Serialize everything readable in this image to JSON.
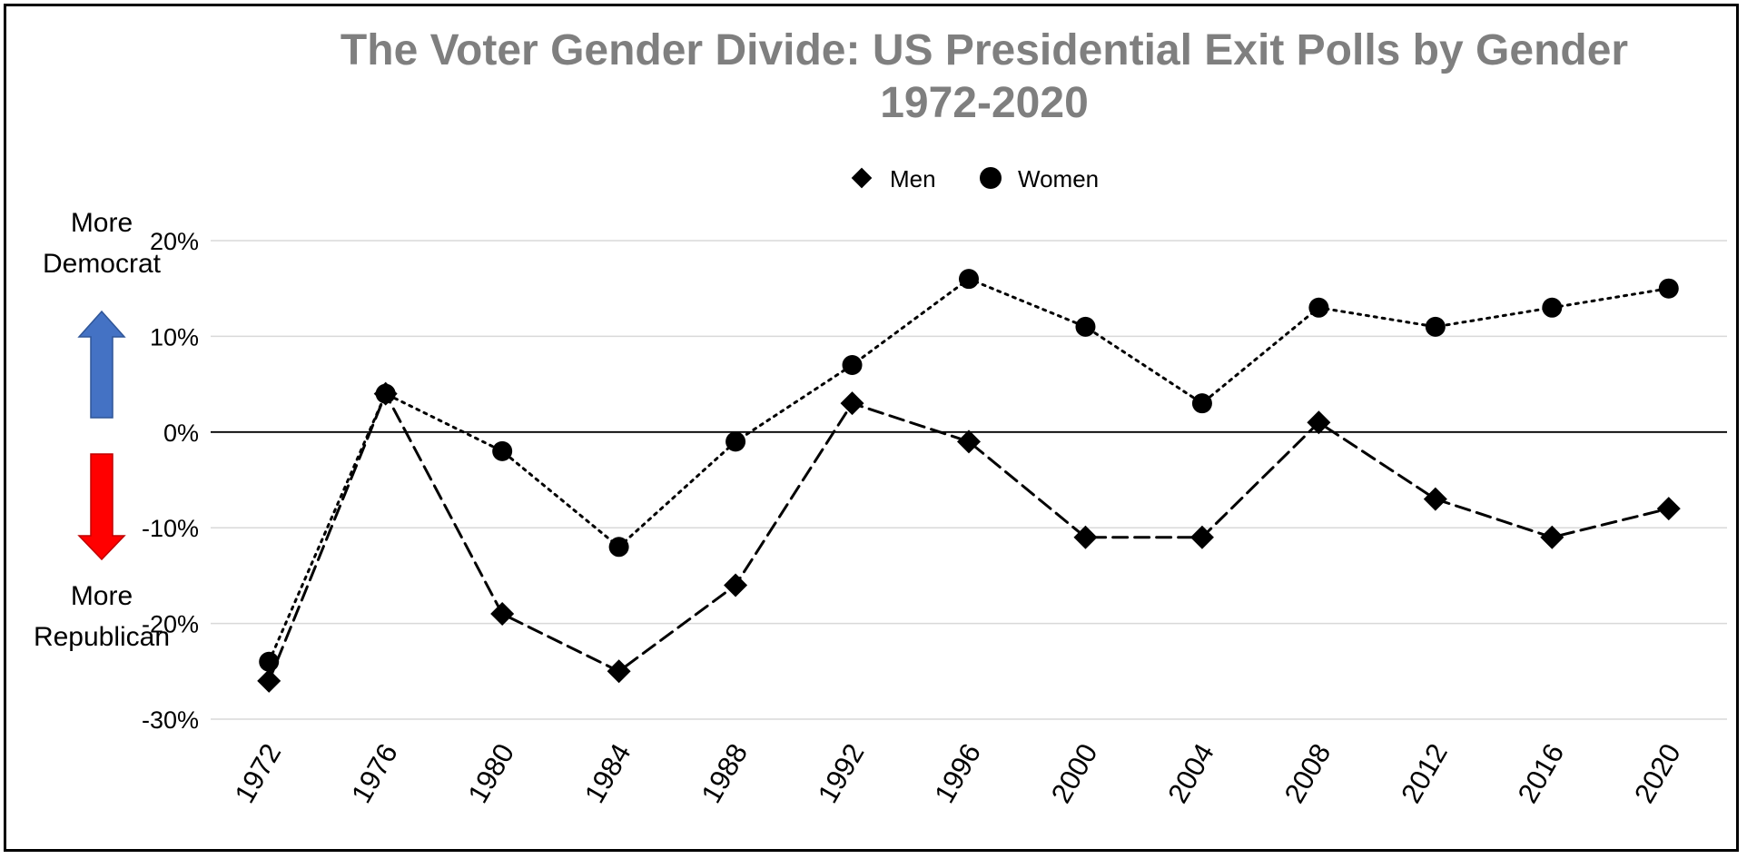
{
  "chart_data": {
    "type": "line",
    "title": "The Voter Gender Divide: US Presidential Exit Polls by Gender",
    "subtitle": "1972-2020",
    "xlabel": "",
    "ylabel": "",
    "categories": [
      "1972",
      "1976",
      "1980",
      "1984",
      "1988",
      "1992",
      "1996",
      "2000",
      "2004",
      "2008",
      "2012",
      "2016",
      "2020"
    ],
    "ylim": [
      -30,
      20
    ],
    "y_ticks": [
      20,
      10,
      0,
      -10,
      -20,
      -30
    ],
    "y_tick_labels": [
      "20%",
      "10%",
      "0%",
      "-10%",
      "-20%",
      "-30%"
    ],
    "grid": true,
    "legend_position": "top-center",
    "series": [
      {
        "name": "Men",
        "marker": "diamond",
        "line_style": "dashed",
        "color": "#000000",
        "values": [
          -26,
          4,
          -19,
          -25,
          -16,
          3,
          -1,
          -11,
          -11,
          1,
          -7,
          -11,
          -8
        ]
      },
      {
        "name": "Women",
        "marker": "circle",
        "line_style": "dotted",
        "color": "#000000",
        "values": [
          -24,
          4,
          -2,
          -12,
          -1,
          7,
          16,
          11,
          3,
          13,
          11,
          13,
          15
        ]
      }
    ],
    "annotations": {
      "up_label_line1": "More",
      "up_label_line2": "Democrat",
      "down_label_line1": "More",
      "down_label_line2": "Republican",
      "up_arrow_color": "#4472C4",
      "down_arrow_color": "#FF0000"
    },
    "colors": {
      "title": "#7F7F7F",
      "gridline": "#D9D9D9",
      "zero_line": "#000000"
    }
  }
}
